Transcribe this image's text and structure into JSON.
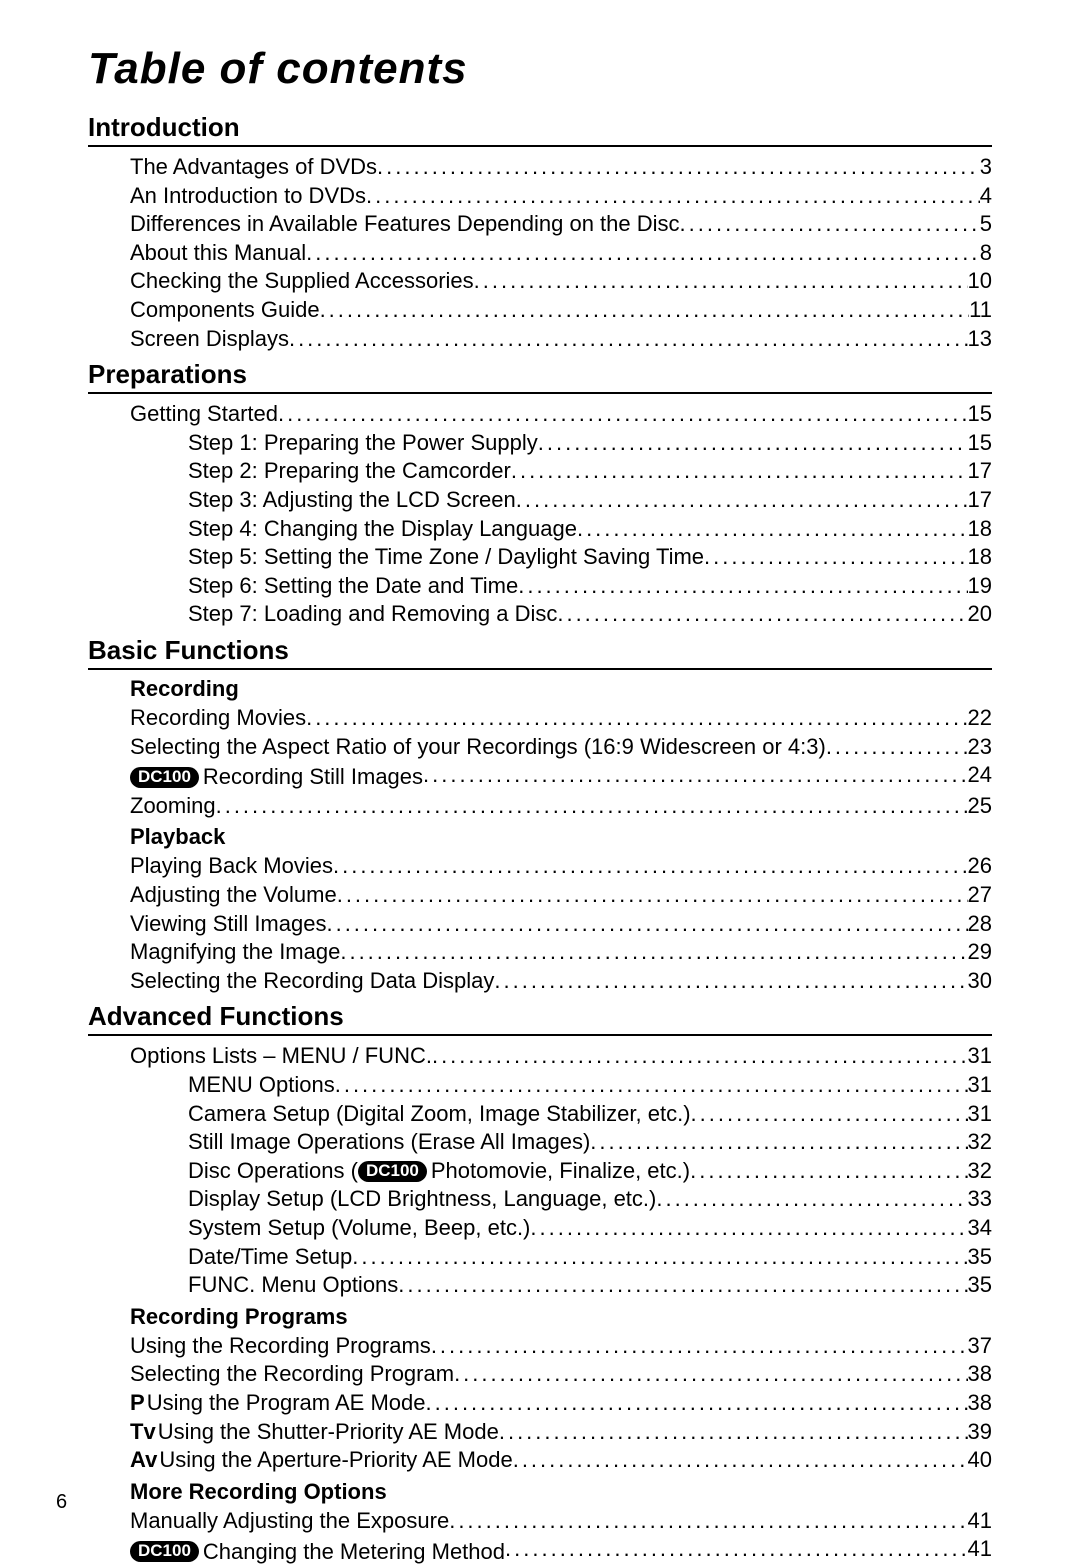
{
  "title": "Table of contents",
  "page_number": "6",
  "badge_text": "DC100",
  "mode_p": "P",
  "mode_tv": "Tv",
  "mode_av": "Av",
  "sections": [
    {
      "heading": "Introduction",
      "entries": [
        {
          "indent": 1,
          "label": "The Advantages of DVDs",
          "page": "3"
        },
        {
          "indent": 1,
          "label": "An Introduction to DVDs",
          "page": "4"
        },
        {
          "indent": 1,
          "label": "Differences in Available Features Depending on the Disc",
          "page": "5"
        },
        {
          "indent": 1,
          "label": "About this Manual",
          "page": "8"
        },
        {
          "indent": 1,
          "label": "Checking the Supplied Accessories",
          "page": "10"
        },
        {
          "indent": 1,
          "label": "Components Guide",
          "page": "11"
        },
        {
          "indent": 1,
          "label": "Screen Displays",
          "page": "13"
        }
      ]
    },
    {
      "heading": "Preparations",
      "entries": [
        {
          "indent": 1,
          "label": "Getting Started",
          "page": "15"
        },
        {
          "indent": 2,
          "label": "Step 1: Preparing the Power Supply",
          "page": "15"
        },
        {
          "indent": 2,
          "label": "Step 2: Preparing the Camcorder",
          "page": "17"
        },
        {
          "indent": 2,
          "label": "Step 3: Adjusting the LCD Screen",
          "page": "17"
        },
        {
          "indent": 2,
          "label": "Step 4: Changing the Display Language",
          "page": "18"
        },
        {
          "indent": 2,
          "label": "Step 5: Setting the Time Zone / Daylight Saving Time",
          "page": "18"
        },
        {
          "indent": 2,
          "label": "Step 6: Setting the Date and Time",
          "page": "19"
        },
        {
          "indent": 2,
          "label": "Step 7: Loading and Removing a Disc",
          "page": "20"
        }
      ]
    },
    {
      "heading": "Basic Functions",
      "subsections": [
        {
          "subheading": "Recording",
          "entries": [
            {
              "indent": 1,
              "label": "Recording Movies",
              "page": "22"
            },
            {
              "indent": 1,
              "label": "Selecting the Aspect Ratio of your Recordings (16:9 Widescreen or 4:3)",
              "page": "23"
            },
            {
              "indent": 1,
              "prefix_badge": true,
              "label": " Recording Still Images",
              "page": "24"
            },
            {
              "indent": 1,
              "label": "Zooming",
              "page": "25"
            }
          ]
        },
        {
          "subheading": "Playback",
          "entries": [
            {
              "indent": 1,
              "label": "Playing Back Movies",
              "page": "26"
            },
            {
              "indent": 1,
              "label": "Adjusting the Volume",
              "page": "27"
            },
            {
              "indent": 1,
              "label": "Viewing Still Images",
              "page": "28"
            },
            {
              "indent": 1,
              "label": "Magnifying the Image",
              "page": "29"
            },
            {
              "indent": 1,
              "label": "Selecting the Recording Data Display",
              "page": "30"
            }
          ]
        }
      ]
    },
    {
      "heading": "Advanced Functions",
      "entries": [
        {
          "indent": 1,
          "label": "Options Lists – MENU / FUNC.",
          "page": "31"
        },
        {
          "indent": 2,
          "label": "MENU Options",
          "page": "31"
        },
        {
          "indent": 3,
          "label": "Camera Setup (Digital Zoom, Image Stabilizer, etc.)",
          "page": "31"
        },
        {
          "indent": 3,
          "label": "Still Image Operations (Erase All Images)",
          "page": "32"
        },
        {
          "indent": 3,
          "label_pre": "Disc Operations (",
          "mid_badge": true,
          "label_post": " Photomovie, Finalize, etc.)",
          "page": "32"
        },
        {
          "indent": 3,
          "label": "Display Setup (LCD Brightness, Language, etc.)",
          "page": "33"
        },
        {
          "indent": 3,
          "label": "System Setup (Volume, Beep, etc.)",
          "page": "34"
        },
        {
          "indent": 3,
          "label": "Date/Time Setup",
          "page": "35"
        },
        {
          "indent": 2,
          "label": "FUNC. Menu Options",
          "page": "35"
        }
      ],
      "subsections": [
        {
          "subheading": "Recording Programs",
          "entries": [
            {
              "indent": 1,
              "label": "Using the Recording Programs",
              "page": "37"
            },
            {
              "indent": 1,
              "label": "Selecting the Recording Program",
              "page": "38"
            },
            {
              "indent": 1,
              "mode": "p",
              "label": "Using the Program AE Mode",
              "page": "38"
            },
            {
              "indent": 1,
              "mode": "tv",
              "label": "Using the Shutter-Priority AE Mode",
              "page": "39"
            },
            {
              "indent": 1,
              "mode": "av",
              "label": "Using the Aperture-Priority AE Mode",
              "page": "40"
            }
          ]
        },
        {
          "subheading": "More Recording Options",
          "entries": [
            {
              "indent": 1,
              "label": "Manually Adjusting the Exposure",
              "page": "41"
            },
            {
              "indent": 1,
              "prefix_badge": true,
              "label": " Changing the Metering Method",
              "page": "41"
            }
          ]
        }
      ]
    }
  ]
}
